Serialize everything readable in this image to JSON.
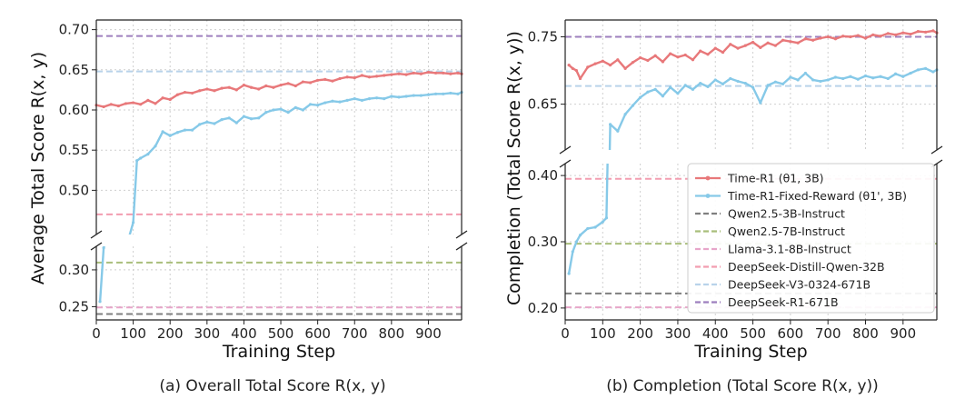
{
  "colors": {
    "time_r1": "#e8787a",
    "time_r1_fixed": "#86c9e8",
    "qwen3b": "#7f7f7f",
    "qwen7b": "#a9be7b",
    "llama8b": "#e7a6c9",
    "distill32b": "#f29db0",
    "v3_671b": "#b9d3ea",
    "r1_671b": "#9e7fbe"
  },
  "chart_data": [
    {
      "type": "line",
      "caption": "(a) Overall Total Score R(x, y)",
      "xlabel": "Training Step",
      "ylabel": "Average Total Score R(x, y)",
      "xlim": [
        0,
        990
      ],
      "xticks": [
        "0",
        "100",
        "200",
        "300",
        "400",
        "500",
        "600",
        "700",
        "800",
        "900"
      ],
      "grid": true,
      "broken_y_axis": true,
      "upper_ylim": [
        0.445,
        0.712
      ],
      "upper_yticks": [
        "0.50",
        "0.55",
        "0.60",
        "0.65",
        "0.70"
      ],
      "lower_ylim": [
        0.232,
        0.332
      ],
      "lower_yticks": [
        "0.25",
        "0.30"
      ],
      "series": [
        {
          "name": "Time-R1 (θ1, 3B)",
          "x": [
            0,
            20,
            40,
            60,
            80,
            100,
            120,
            140,
            160,
            180,
            200,
            220,
            240,
            260,
            280,
            300,
            320,
            340,
            360,
            380,
            400,
            420,
            440,
            460,
            480,
            500,
            520,
            540,
            560,
            580,
            600,
            620,
            640,
            660,
            680,
            700,
            720,
            740,
            760,
            780,
            800,
            820,
            840,
            860,
            880,
            900,
            920,
            940,
            960,
            980,
            990
          ],
          "y": [
            0.606,
            0.604,
            0.607,
            0.605,
            0.608,
            0.609,
            0.607,
            0.612,
            0.608,
            0.615,
            0.613,
            0.619,
            0.622,
            0.621,
            0.624,
            0.626,
            0.624,
            0.627,
            0.628,
            0.625,
            0.631,
            0.628,
            0.626,
            0.63,
            0.628,
            0.631,
            0.633,
            0.63,
            0.635,
            0.634,
            0.637,
            0.638,
            0.636,
            0.639,
            0.641,
            0.64,
            0.643,
            0.641,
            0.642,
            0.643,
            0.644,
            0.645,
            0.644,
            0.646,
            0.645,
            0.647,
            0.646,
            0.646,
            0.645,
            0.646,
            0.645
          ]
        },
        {
          "name": "Time-R1-Fixed-Reward (θ1', 3B)",
          "x": [
            10,
            20,
            100,
            110,
            120,
            140,
            160,
            180,
            200,
            220,
            240,
            260,
            280,
            300,
            320,
            340,
            360,
            380,
            400,
            420,
            440,
            460,
            480,
            500,
            520,
            540,
            560,
            580,
            600,
            620,
            640,
            660,
            680,
            700,
            720,
            740,
            760,
            780,
            800,
            820,
            840,
            860,
            880,
            900,
            920,
            940,
            960,
            980,
            990
          ],
          "y": [
            0.257,
            0.33,
            0.46,
            0.537,
            0.54,
            0.545,
            0.555,
            0.573,
            0.568,
            0.572,
            0.575,
            0.575,
            0.582,
            0.585,
            0.583,
            0.588,
            0.59,
            0.584,
            0.592,
            0.589,
            0.59,
            0.597,
            0.6,
            0.601,
            0.597,
            0.603,
            0.6,
            0.607,
            0.606,
            0.609,
            0.611,
            0.61,
            0.612,
            0.614,
            0.612,
            0.614,
            0.615,
            0.614,
            0.617,
            0.616,
            0.617,
            0.618,
            0.618,
            0.619,
            0.62,
            0.62,
            0.621,
            0.62,
            0.622
          ]
        }
      ],
      "reference_lines": [
        {
          "name": "Qwen2.5-3B-Instruct",
          "y": 0.24
        },
        {
          "name": "Qwen2.5-7B-Instruct",
          "y": 0.31
        },
        {
          "name": "Llama-3.1-8B-Instruct",
          "y": 0.249
        },
        {
          "name": "DeepSeek-Distill-Qwen-32B",
          "y": 0.47
        },
        {
          "name": "DeepSeek-V3-0324-671B",
          "y": 0.648
        },
        {
          "name": "DeepSeek-R1-671B",
          "y": 0.692
        }
      ]
    },
    {
      "type": "line",
      "caption": "(b) Completion (Total Score R(x, y))",
      "xlabel": "Training Step",
      "ylabel": "Completion (Total Score R(x, y))",
      "xlim": [
        0,
        990
      ],
      "xticks": [
        "0",
        "100",
        "200",
        "300",
        "400",
        "500",
        "600",
        "700",
        "800",
        "900"
      ],
      "grid": true,
      "broken_y_axis": true,
      "upper_ylim": [
        0.582,
        0.775
      ],
      "upper_yticks": [
        "0.65",
        "0.75"
      ],
      "lower_ylim": [
        0.182,
        0.418
      ],
      "lower_yticks": [
        "0.20",
        "0.30",
        "0.40"
      ],
      "legend_position": "center-right",
      "series": [
        {
          "name": "Time-R1 (θ1, 3B)",
          "x": [
            10,
            20,
            30,
            40,
            60,
            80,
            100,
            120,
            140,
            160,
            180,
            200,
            220,
            240,
            260,
            280,
            300,
            320,
            340,
            360,
            380,
            400,
            420,
            440,
            460,
            480,
            500,
            520,
            540,
            560,
            580,
            600,
            620,
            640,
            660,
            680,
            700,
            720,
            740,
            760,
            780,
            800,
            820,
            840,
            860,
            880,
            900,
            920,
            940,
            960,
            980,
            990
          ],
          "y": [
            0.708,
            0.703,
            0.7,
            0.688,
            0.705,
            0.71,
            0.714,
            0.708,
            0.716,
            0.703,
            0.712,
            0.719,
            0.715,
            0.722,
            0.713,
            0.725,
            0.72,
            0.723,
            0.716,
            0.729,
            0.724,
            0.733,
            0.727,
            0.739,
            0.733,
            0.737,
            0.742,
            0.734,
            0.741,
            0.737,
            0.745,
            0.743,
            0.741,
            0.747,
            0.745,
            0.748,
            0.75,
            0.747,
            0.751,
            0.75,
            0.752,
            0.748,
            0.753,
            0.751,
            0.755,
            0.753,
            0.756,
            0.754,
            0.758,
            0.757,
            0.759,
            0.756
          ]
        },
        {
          "name": "Time-R1-Fixed-Reward (θ1', 3B)",
          "x": [
            10,
            20,
            30,
            40,
            60,
            80,
            100,
            110,
            120,
            140,
            160,
            180,
            200,
            220,
            240,
            260,
            280,
            300,
            320,
            340,
            360,
            380,
            400,
            420,
            440,
            460,
            480,
            500,
            520,
            540,
            560,
            580,
            600,
            620,
            640,
            660,
            680,
            700,
            720,
            740,
            760,
            780,
            800,
            820,
            840,
            860,
            880,
            900,
            920,
            940,
            960,
            980,
            990
          ],
          "y": [
            0.252,
            0.285,
            0.3,
            0.31,
            0.32,
            0.322,
            0.33,
            0.336,
            0.62,
            0.61,
            0.635,
            0.648,
            0.66,
            0.668,
            0.672,
            0.662,
            0.675,
            0.666,
            0.678,
            0.672,
            0.681,
            0.676,
            0.686,
            0.68,
            0.688,
            0.684,
            0.681,
            0.675,
            0.652,
            0.678,
            0.683,
            0.68,
            0.69,
            0.686,
            0.696,
            0.686,
            0.684,
            0.686,
            0.69,
            0.688,
            0.691,
            0.687,
            0.692,
            0.689,
            0.691,
            0.688,
            0.695,
            0.691,
            0.696,
            0.701,
            0.703,
            0.698,
            0.701
          ]
        }
      ],
      "reference_lines": [
        {
          "name": "Qwen2.5-3B-Instruct",
          "y": 0.222
        },
        {
          "name": "Qwen2.5-7B-Instruct",
          "y": 0.297
        },
        {
          "name": "Llama-3.1-8B-Instruct",
          "y": 0.201
        },
        {
          "name": "DeepSeek-Distill-Qwen-32B",
          "y": 0.395
        },
        {
          "name": "DeepSeek-V3-0324-671B",
          "y": 0.677
        },
        {
          "name": "DeepSeek-R1-671B",
          "y": 0.75
        }
      ]
    }
  ]
}
